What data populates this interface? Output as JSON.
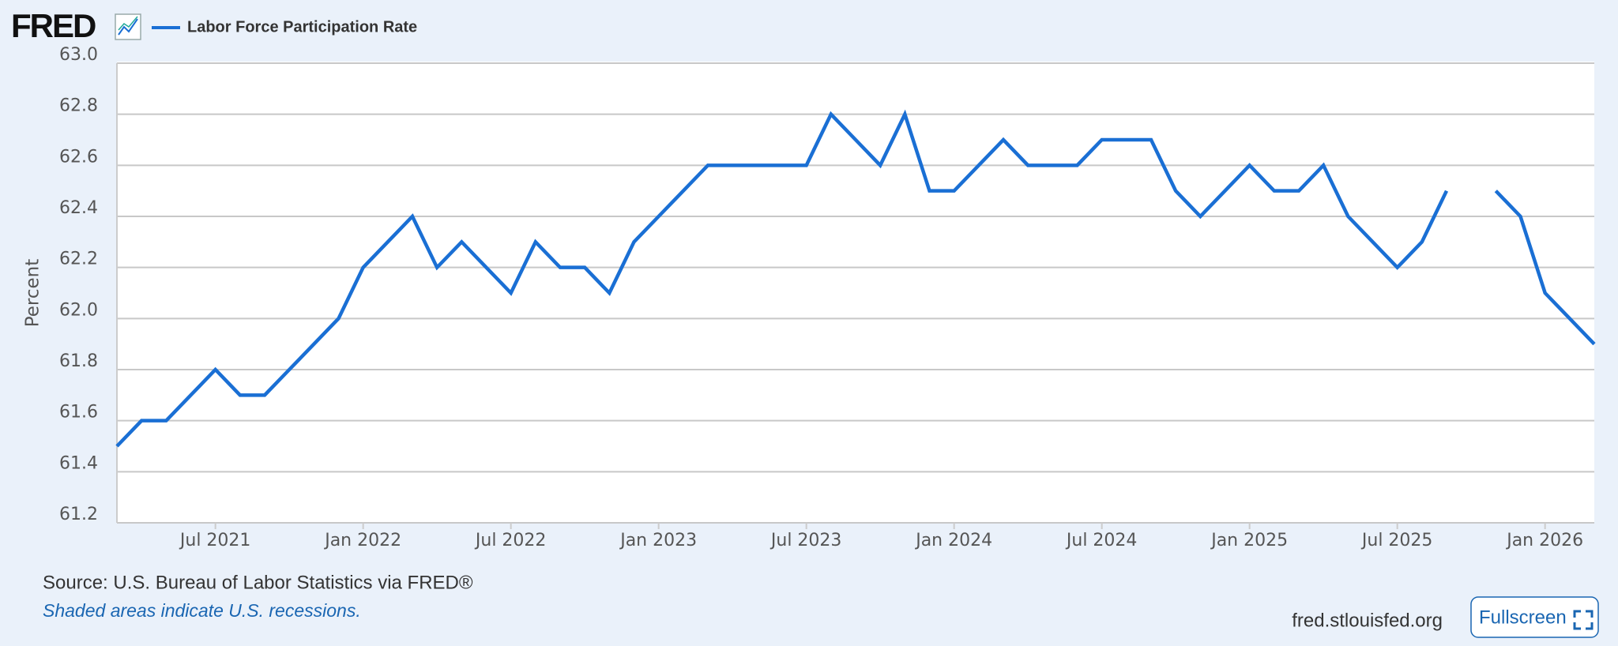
{
  "logo": "FRED",
  "source": "Source: U.S. Bureau of Labor Statistics via FRED®",
  "note": "Shaded areas indicate U.S. recessions.",
  "site": "fred.stlouisfed.org",
  "button": "Fullscreen",
  "chart_data": {
    "type": "line",
    "y_label": "Percent",
    "x": [
      "2021-03",
      "2021-04",
      "2021-05",
      "2021-06",
      "2021-07",
      "2021-08",
      "2021-09",
      "2021-10",
      "2021-11",
      "2021-12",
      "2022-01",
      "2022-02",
      "2022-03",
      "2022-04",
      "2022-05",
      "2022-06",
      "2022-07",
      "2022-08",
      "2022-09",
      "2022-10",
      "2022-11",
      "2022-12",
      "2023-01",
      "2023-02",
      "2023-03",
      "2023-04",
      "2023-05",
      "2023-06",
      "2023-07",
      "2023-08",
      "2023-09",
      "2023-10",
      "2023-11",
      "2023-12",
      "2024-01",
      "2024-02",
      "2024-03",
      "2024-04",
      "2024-05",
      "2024-06",
      "2024-07",
      "2024-08",
      "2024-09",
      "2024-10",
      "2024-11",
      "2024-12",
      "2025-01",
      "2025-02",
      "2025-03",
      "2025-04",
      "2025-05",
      "2025-06",
      "2025-07",
      "2025-08",
      "2025-09",
      "2025-10",
      "2025-11",
      "2025-12",
      "2026-01",
      "2026-02",
      "2026-03"
    ],
    "series": [
      {
        "name": "Labor Force Participation Rate",
        "color": "#1a6fd4",
        "values": [
          61.5,
          61.6,
          61.6,
          61.7,
          61.8,
          61.7,
          61.7,
          61.8,
          61.9,
          62.0,
          62.2,
          62.3,
          62.4,
          62.2,
          62.3,
          62.2,
          62.1,
          62.3,
          62.2,
          62.2,
          62.1,
          62.3,
          62.4,
          62.5,
          62.6,
          62.6,
          62.6,
          62.6,
          62.6,
          62.8,
          62.7,
          62.6,
          62.8,
          62.5,
          62.5,
          62.6,
          62.7,
          62.6,
          62.6,
          62.6,
          62.7,
          62.7,
          62.7,
          62.5,
          62.4,
          62.5,
          62.6,
          62.5,
          62.5,
          62.6,
          62.4,
          62.3,
          62.2,
          62.3,
          62.5,
          null,
          62.5,
          62.4,
          62.1,
          62.0,
          61.9
        ]
      }
    ],
    "xlim": [
      "2021-03",
      "2026-03"
    ],
    "xticks": [
      {
        "value": "2021-07",
        "label": "Jul 2021"
      },
      {
        "value": "2022-01",
        "label": "Jan 2022"
      },
      {
        "value": "2022-07",
        "label": "Jul 2022"
      },
      {
        "value": "2023-01",
        "label": "Jan 2023"
      },
      {
        "value": "2023-07",
        "label": "Jul 2023"
      },
      {
        "value": "2024-01",
        "label": "Jan 2024"
      },
      {
        "value": "2024-07",
        "label": "Jul 2024"
      },
      {
        "value": "2025-01",
        "label": "Jan 2025"
      },
      {
        "value": "2025-07",
        "label": "Jul 2025"
      },
      {
        "value": "2026-01",
        "label": "Jan 2026"
      }
    ],
    "ylim": [
      61.2,
      63.0
    ],
    "yticks": [
      61.2,
      61.4,
      61.6,
      61.8,
      {
        "value": 62.0,
        "label": "62.0"
      },
      62.2,
      62.4,
      62.6,
      62.8,
      {
        "value": 63.0,
        "label": "63.0"
      }
    ],
    "grid": true
  }
}
